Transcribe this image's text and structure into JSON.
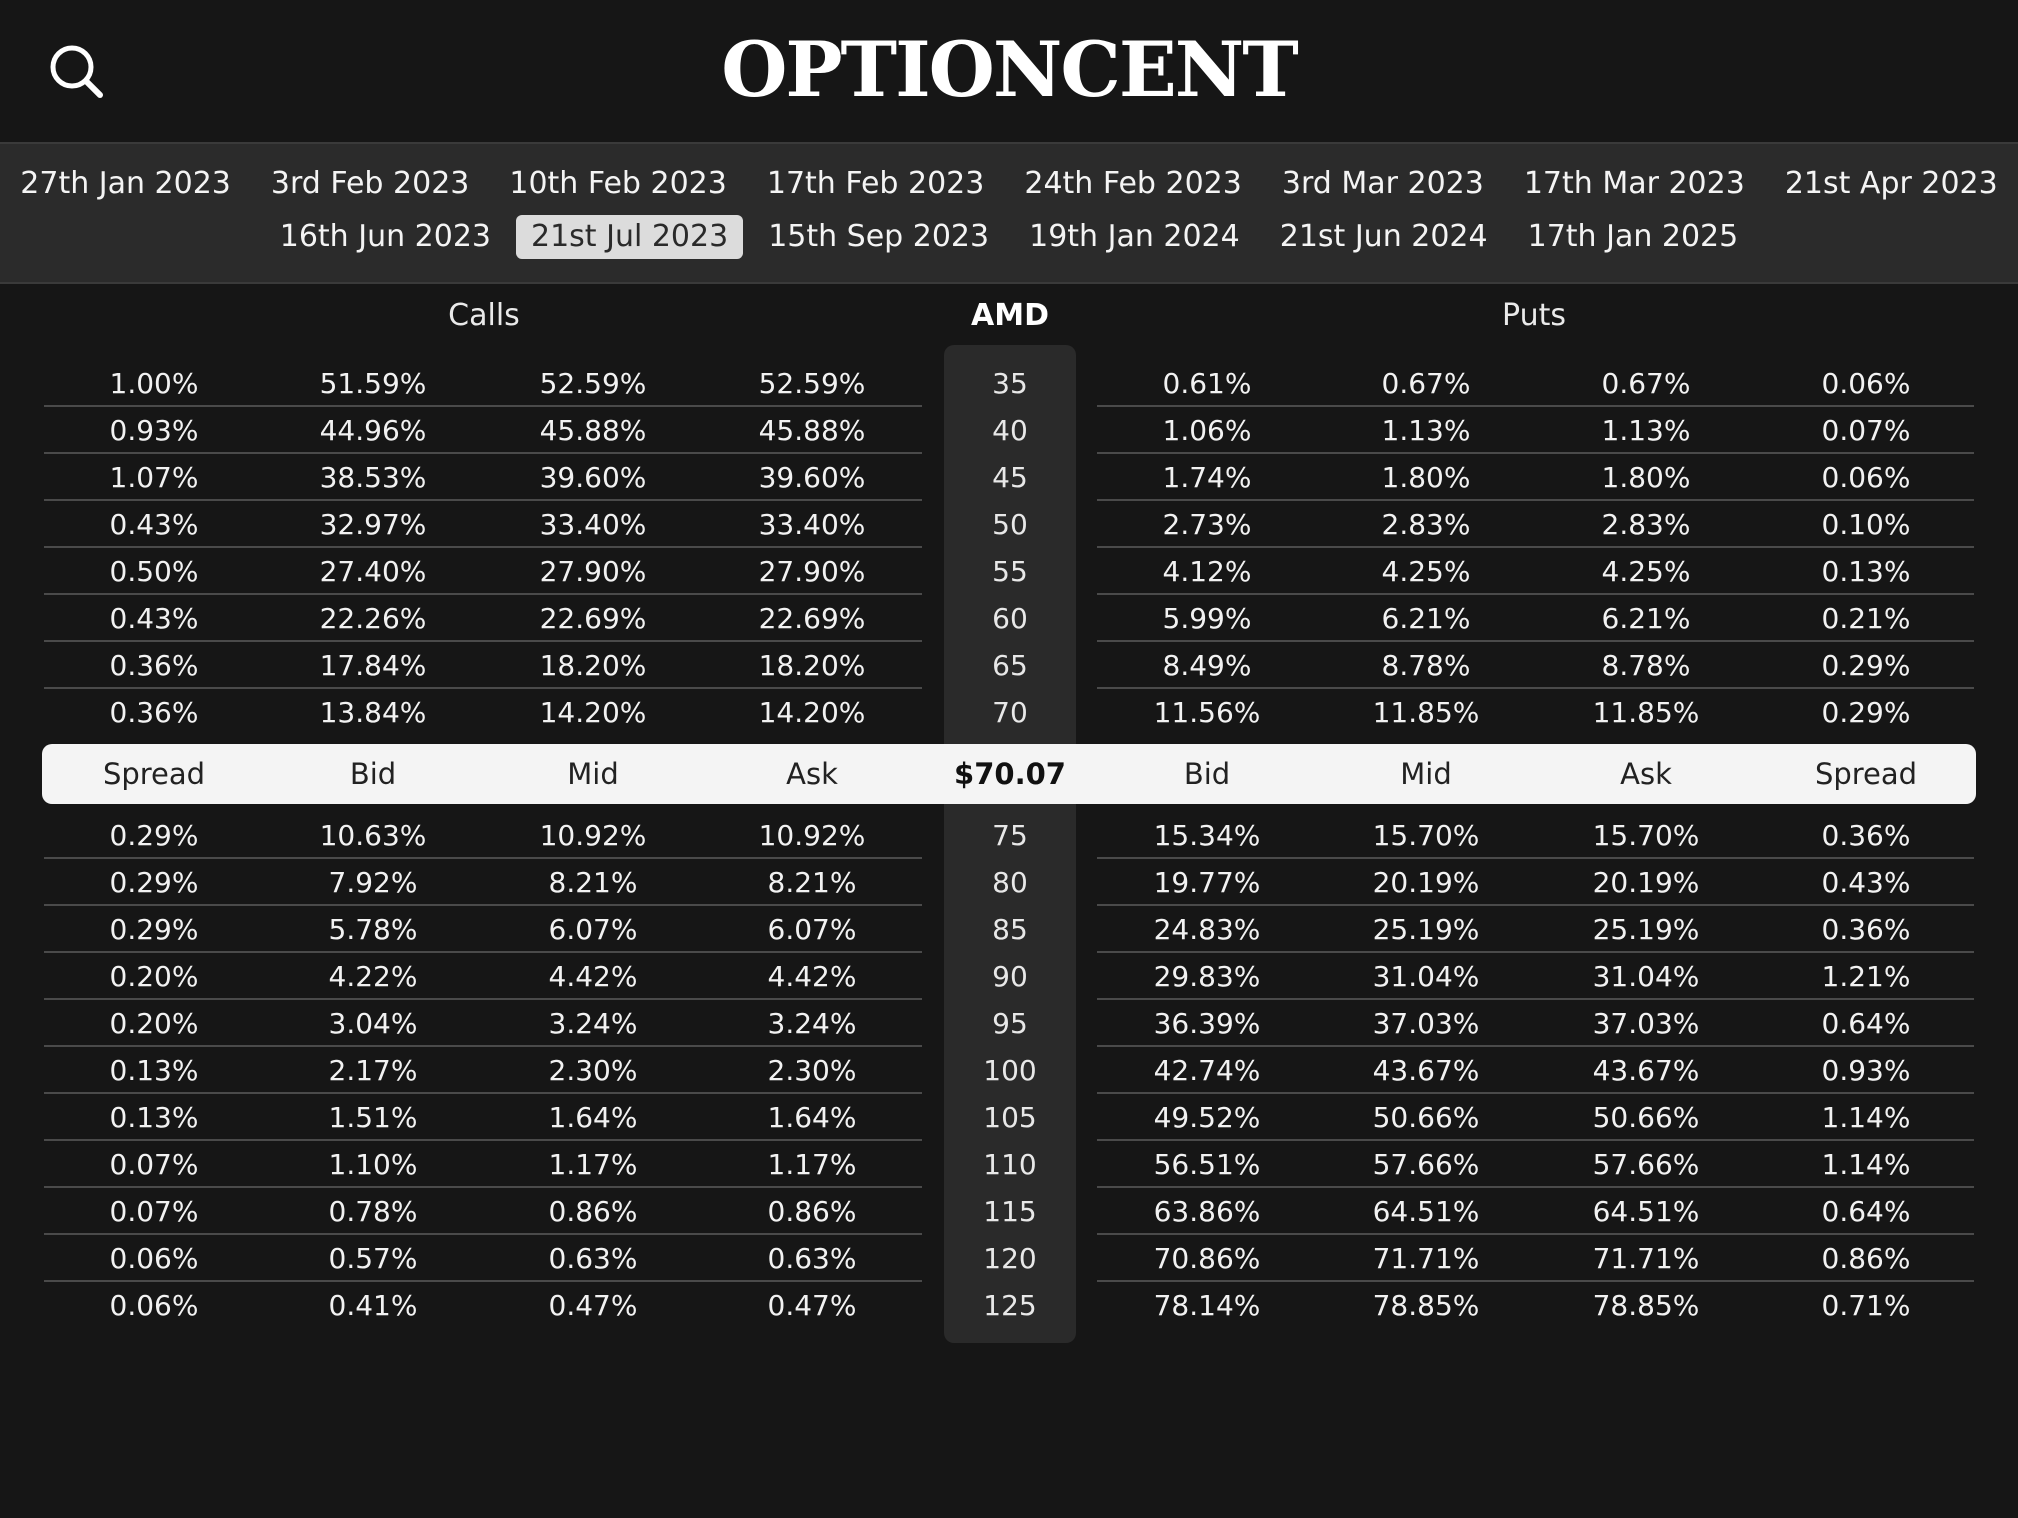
{
  "app": {
    "logo": "OPTIONCENT"
  },
  "header": {
    "search_icon": "search-icon"
  },
  "expiry_dates": {
    "row1": [
      "27th Jan 2023",
      "3rd Feb 2023",
      "10th Feb 2023",
      "17th Feb 2023",
      "24th Feb 2023",
      "3rd Mar 2023",
      "17th Mar 2023",
      "21st Apr 2023"
    ],
    "row2": [
      "16th Jun 2023",
      "21st Jul 2023",
      "15th Sep 2023",
      "19th Jan 2024",
      "21st Jun 2024",
      "17th Jan 2025"
    ],
    "selected": "21st Jul 2023"
  },
  "labels": {
    "calls": "Calls",
    "ticker": "AMD",
    "puts": "Puts"
  },
  "column_headers": {
    "calls": [
      "Spread",
      "Bid",
      "Mid",
      "Ask"
    ],
    "price": "$70.07",
    "puts": [
      "Bid",
      "Mid",
      "Ask",
      "Spread"
    ]
  },
  "rows_above": [
    {
      "strike": "35",
      "calls": [
        "1.00%",
        "51.59%",
        "52.59%",
        "52.59%"
      ],
      "puts": [
        "0.61%",
        "0.67%",
        "0.67%",
        "0.06%"
      ]
    },
    {
      "strike": "40",
      "calls": [
        "0.93%",
        "44.96%",
        "45.88%",
        "45.88%"
      ],
      "puts": [
        "1.06%",
        "1.13%",
        "1.13%",
        "0.07%"
      ]
    },
    {
      "strike": "45",
      "calls": [
        "1.07%",
        "38.53%",
        "39.60%",
        "39.60%"
      ],
      "puts": [
        "1.74%",
        "1.80%",
        "1.80%",
        "0.06%"
      ]
    },
    {
      "strike": "50",
      "calls": [
        "0.43%",
        "32.97%",
        "33.40%",
        "33.40%"
      ],
      "puts": [
        "2.73%",
        "2.83%",
        "2.83%",
        "0.10%"
      ]
    },
    {
      "strike": "55",
      "calls": [
        "0.50%",
        "27.40%",
        "27.90%",
        "27.90%"
      ],
      "puts": [
        "4.12%",
        "4.25%",
        "4.25%",
        "0.13%"
      ]
    },
    {
      "strike": "60",
      "calls": [
        "0.43%",
        "22.26%",
        "22.69%",
        "22.69%"
      ],
      "puts": [
        "5.99%",
        "6.21%",
        "6.21%",
        "0.21%"
      ]
    },
    {
      "strike": "65",
      "calls": [
        "0.36%",
        "17.84%",
        "18.20%",
        "18.20%"
      ],
      "puts": [
        "8.49%",
        "8.78%",
        "8.78%",
        "0.29%"
      ]
    },
    {
      "strike": "70",
      "calls": [
        "0.36%",
        "13.84%",
        "14.20%",
        "14.20%"
      ],
      "puts": [
        "11.56%",
        "11.85%",
        "11.85%",
        "0.29%"
      ]
    }
  ],
  "rows_below": [
    {
      "strike": "75",
      "calls": [
        "0.29%",
        "10.63%",
        "10.92%",
        "10.92%"
      ],
      "puts": [
        "15.34%",
        "15.70%",
        "15.70%",
        "0.36%"
      ]
    },
    {
      "strike": "80",
      "calls": [
        "0.29%",
        "7.92%",
        "8.21%",
        "8.21%"
      ],
      "puts": [
        "19.77%",
        "20.19%",
        "20.19%",
        "0.43%"
      ]
    },
    {
      "strike": "85",
      "calls": [
        "0.29%",
        "5.78%",
        "6.07%",
        "6.07%"
      ],
      "puts": [
        "24.83%",
        "25.19%",
        "25.19%",
        "0.36%"
      ]
    },
    {
      "strike": "90",
      "calls": [
        "0.20%",
        "4.22%",
        "4.42%",
        "4.42%"
      ],
      "puts": [
        "29.83%",
        "31.04%",
        "31.04%",
        "1.21%"
      ]
    },
    {
      "strike": "95",
      "calls": [
        "0.20%",
        "3.04%",
        "3.24%",
        "3.24%"
      ],
      "puts": [
        "36.39%",
        "37.03%",
        "37.03%",
        "0.64%"
      ]
    },
    {
      "strike": "100",
      "calls": [
        "0.13%",
        "2.17%",
        "2.30%",
        "2.30%"
      ],
      "puts": [
        "42.74%",
        "43.67%",
        "43.67%",
        "0.93%"
      ]
    },
    {
      "strike": "105",
      "calls": [
        "0.13%",
        "1.51%",
        "1.64%",
        "1.64%"
      ],
      "puts": [
        "49.52%",
        "50.66%",
        "50.66%",
        "1.14%"
      ]
    },
    {
      "strike": "110",
      "calls": [
        "0.07%",
        "1.10%",
        "1.17%",
        "1.17%"
      ],
      "puts": [
        "56.51%",
        "57.66%",
        "57.66%",
        "1.14%"
      ]
    },
    {
      "strike": "115",
      "calls": [
        "0.07%",
        "0.78%",
        "0.86%",
        "0.86%"
      ],
      "puts": [
        "63.86%",
        "64.51%",
        "64.51%",
        "0.64%"
      ]
    },
    {
      "strike": "120",
      "calls": [
        "0.06%",
        "0.57%",
        "0.63%",
        "0.63%"
      ],
      "puts": [
        "70.86%",
        "71.71%",
        "71.71%",
        "0.86%"
      ]
    },
    {
      "strike": "125",
      "calls": [
        "0.06%",
        "0.41%",
        "0.47%",
        "0.47%"
      ],
      "puts": [
        "78.14%",
        "78.85%",
        "78.85%",
        "0.71%"
      ]
    }
  ]
}
